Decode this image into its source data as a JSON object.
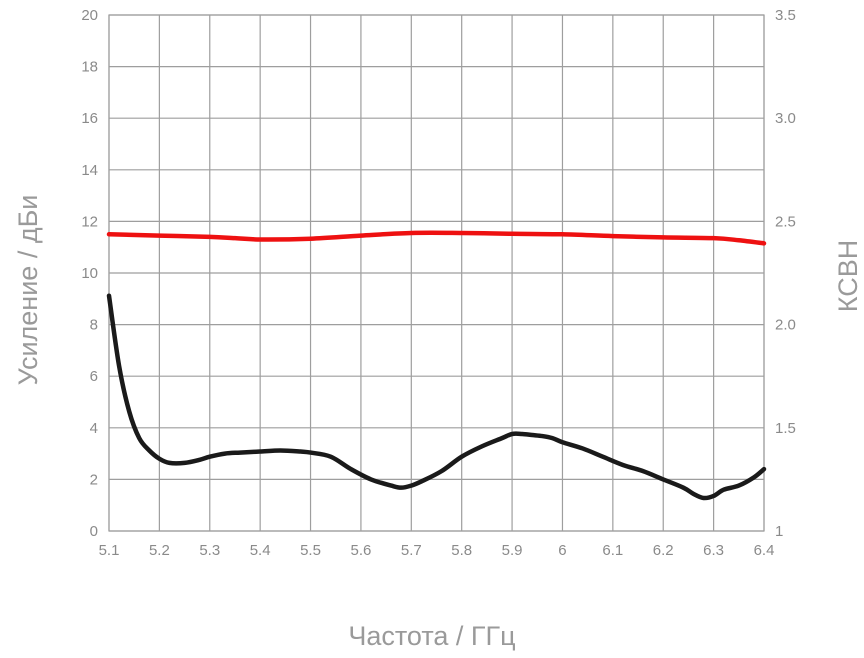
{
  "chart_data": {
    "type": "line",
    "xlabel": "Частота / ГГц",
    "ylabel_left": "Усиление / дБи",
    "ylabel_right": "КСВН",
    "xlim": [
      5.1,
      6.4
    ],
    "ylim_left": [
      0,
      20
    ],
    "ylim_right": [
      1,
      3.5
    ],
    "x_ticks": [
      "5.1",
      "5.2",
      "5.3",
      "5.4",
      "5.5",
      "5.6",
      "5.7",
      "5.8",
      "5.9",
      "6",
      "6.1",
      "6.2",
      "6.3",
      "6.4"
    ],
    "y_ticks_left": [
      "0",
      "2",
      "4",
      "6",
      "8",
      "10",
      "12",
      "14",
      "16",
      "18",
      "20"
    ],
    "y_ticks_right": [
      "1",
      "1.5",
      "2.0",
      "2.5",
      "3.0",
      "3.5"
    ],
    "grid": true,
    "series": [
      {
        "axis": "left",
        "color": "#ee1111",
        "x": [
          5.1,
          5.2,
          5.3,
          5.35,
          5.4,
          5.5,
          5.6,
          5.7,
          5.8,
          5.9,
          6.0,
          6.1,
          6.2,
          6.3,
          6.35,
          6.4
        ],
        "y": [
          11.5,
          11.45,
          11.4,
          11.35,
          11.3,
          11.33,
          11.45,
          11.55,
          11.55,
          11.52,
          11.5,
          11.43,
          11.38,
          11.35,
          11.27,
          11.15
        ]
      },
      {
        "axis": "right",
        "color": "#1a1a1a",
        "x": [
          5.1,
          5.12,
          5.14,
          5.16,
          5.18,
          5.2,
          5.22,
          5.25,
          5.28,
          5.3,
          5.33,
          5.36,
          5.4,
          5.44,
          5.48,
          5.5,
          5.54,
          5.58,
          5.62,
          5.66,
          5.68,
          5.7,
          5.72,
          5.76,
          5.8,
          5.84,
          5.88,
          5.9,
          5.92,
          5.94,
          5.96,
          5.98,
          6.0,
          6.04,
          6.08,
          6.12,
          6.16,
          6.2,
          6.24,
          6.26,
          6.28,
          6.3,
          6.32,
          6.35,
          6.38,
          6.4
        ],
        "y": [
          2.14,
          1.8,
          1.58,
          1.45,
          1.39,
          1.35,
          1.33,
          1.33,
          1.345,
          1.36,
          1.375,
          1.38,
          1.385,
          1.39,
          1.385,
          1.38,
          1.36,
          1.3,
          1.25,
          1.22,
          1.21,
          1.22,
          1.24,
          1.29,
          1.36,
          1.41,
          1.45,
          1.47,
          1.47,
          1.465,
          1.46,
          1.45,
          1.43,
          1.4,
          1.36,
          1.32,
          1.29,
          1.25,
          1.21,
          1.18,
          1.16,
          1.17,
          1.2,
          1.22,
          1.26,
          1.3
        ]
      }
    ]
  }
}
